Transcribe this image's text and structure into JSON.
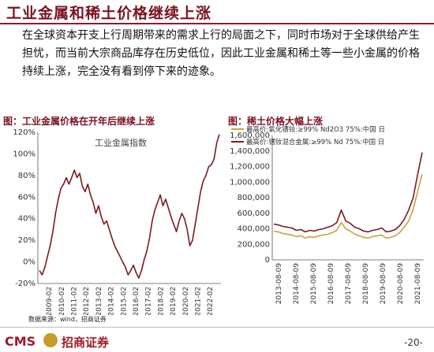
{
  "header": {
    "title": "工业金属和稀土价格继续上涨",
    "body": "在全球资本开支上行周期带来的需求上行的局面之下，同时市场对于全球供给产生担忧，而当前大宗商品库存在历史低位，因此工业金属和稀土等一些小金属的价格持续上涨，完全没有看到停下来的迹象。"
  },
  "footer": {
    "source": "数据来源：wind，招商证券",
    "logo_cms": "CMS",
    "logo_text": "招商证券",
    "page": "-20-"
  },
  "colors": {
    "brand": "#8a1c26",
    "line_dark": "#7a1a22",
    "line_gold": "#c9a23a"
  },
  "chart_data": [
    {
      "type": "line",
      "title": "图：工业金属价格在开年后继续上涨",
      "series": [
        {
          "name": "工业金属指数",
          "values": [
            -8,
            -12,
            -5,
            5,
            15,
            28,
            45,
            58,
            68,
            72,
            78,
            72,
            78,
            85,
            78,
            82,
            70,
            65,
            72,
            62,
            55,
            45,
            52,
            42,
            35,
            38,
            30,
            22,
            15,
            10,
            5,
            0,
            -5,
            -12,
            -8,
            -3,
            -10,
            -15,
            -8,
            2,
            10,
            22,
            38,
            48,
            55,
            62,
            52,
            58,
            50,
            42,
            35,
            28,
            38,
            45,
            40,
            30,
            15,
            20,
            35,
            50,
            65,
            75,
            80,
            88,
            90,
            95,
            110,
            118
          ]
        }
      ],
      "x_ticks": [
        "2009-02",
        "2010-02",
        "2011-02",
        "2012-02",
        "2013-02",
        "2014-02",
        "2015-02",
        "2016-02",
        "2017-02",
        "2018-02",
        "2019-02",
        "2020-02",
        "2021-02",
        "2022-02"
      ],
      "y_ticks": [
        "-20%",
        "0%",
        "20%",
        "40%",
        "60%",
        "80%",
        "100%",
        "120%"
      ],
      "ylim": [
        -20,
        120
      ]
    },
    {
      "type": "line",
      "title": "图：稀土价格大幅上涨",
      "series": [
        {
          "name": "最高价:氧化镨钕:≥99% Nd2O3 75%:中国 日",
          "values": [
            370000,
            360000,
            340000,
            330000,
            320000,
            300000,
            310000,
            280000,
            300000,
            290000,
            310000,
            320000,
            330000,
            350000,
            380000,
            480000,
            400000,
            370000,
            330000,
            310000,
            290000,
            280000,
            300000,
            310000,
            320000,
            280000,
            290000,
            310000,
            350000,
            420000,
            500000,
            650000,
            880000,
            1100000
          ]
        },
        {
          "name": "最高价:镨钕混合金属:≥99% Nd 75%:中国 日",
          "values": [
            460000,
            450000,
            430000,
            420000,
            410000,
            380000,
            390000,
            360000,
            380000,
            370000,
            390000,
            400000,
            420000,
            440000,
            480000,
            640000,
            500000,
            470000,
            420000,
            400000,
            370000,
            360000,
            380000,
            390000,
            410000,
            360000,
            370000,
            390000,
            440000,
            520000,
            640000,
            800000,
            1100000,
            1380000
          ]
        }
      ],
      "x_ticks": [
        "2013-08-09",
        "2014-08-09",
        "2015-08-09",
        "2016-08-09",
        "2017-08-09",
        "2018-08-09",
        "2019-08-09",
        "2020-08-09",
        "2021-08-09"
      ],
      "y_ticks": [
        "0",
        "200,000",
        "400,000",
        "600,000",
        "800,000",
        "1,000,000",
        "1,200,000",
        "1,400,000",
        "1,600,000"
      ],
      "ylim": [
        0,
        1600000
      ]
    }
  ]
}
